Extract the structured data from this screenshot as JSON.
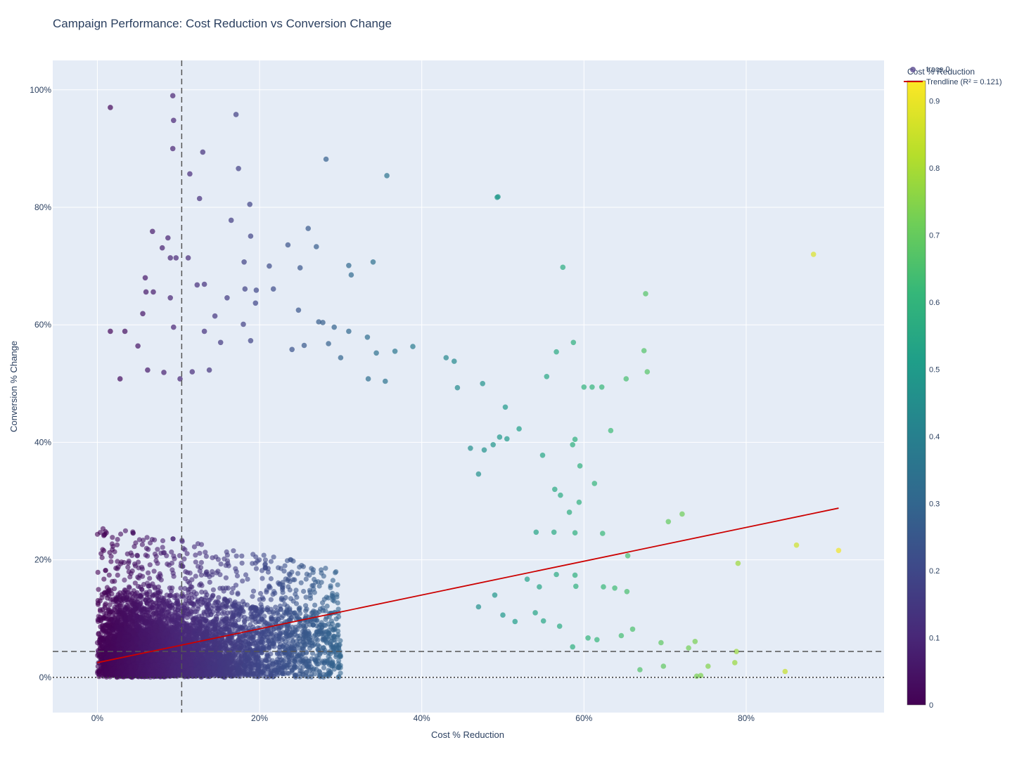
{
  "chart_data": {
    "type": "scatter",
    "title": "Campaign Performance: Cost Reduction vs Conversion Change",
    "xlabel": "Cost % Reduction",
    "ylabel": "Conversion % Change",
    "x_ticks": [
      "0%",
      "20%",
      "40%",
      "60%",
      "80%"
    ],
    "y_ticks": [
      "0%",
      "20%",
      "40%",
      "60%",
      "80%",
      "100%"
    ],
    "xlim": [
      -0.055,
      0.97
    ],
    "ylim": [
      -0.06,
      1.05
    ],
    "grid": true,
    "plot_background": "#e5ecf6",
    "colorscale": "viridis",
    "colorbar": {
      "title": "Cost % Reduction",
      "range": [
        0,
        0.93
      ],
      "ticks": [
        "0",
        "0.1",
        "0.2",
        "0.3",
        "0.4",
        "0.5",
        "0.6",
        "0.7",
        "0.8",
        "0.9"
      ]
    },
    "legend": {
      "placement": "top-right",
      "entries": [
        "trace 0",
        "Trendline (R² = 0.121)"
      ]
    },
    "series": [
      {
        "name": "trace 0",
        "kind": "markers",
        "points": [
          [
            0.016,
            0.97
          ],
          [
            0.093,
            0.99
          ],
          [
            0.094,
            0.948
          ],
          [
            0.171,
            0.958
          ],
          [
            0.093,
            0.9
          ],
          [
            0.13,
            0.894
          ],
          [
            0.282,
            0.882
          ],
          [
            0.174,
            0.866
          ],
          [
            0.114,
            0.857
          ],
          [
            0.357,
            0.854
          ],
          [
            0.126,
            0.815
          ],
          [
            0.188,
            0.805
          ],
          [
            0.493,
            0.817
          ],
          [
            0.883,
            0.72
          ],
          [
            0.165,
            0.778
          ],
          [
            0.068,
            0.759
          ],
          [
            0.087,
            0.748
          ],
          [
            0.08,
            0.731
          ],
          [
            0.189,
            0.751
          ],
          [
            0.235,
            0.736
          ],
          [
            0.27,
            0.733
          ],
          [
            0.09,
            0.714
          ],
          [
            0.097,
            0.714
          ],
          [
            0.112,
            0.714
          ],
          [
            0.181,
            0.707
          ],
          [
            0.212,
            0.7
          ],
          [
            0.25,
            0.697
          ],
          [
            0.31,
            0.701
          ],
          [
            0.313,
            0.685
          ],
          [
            0.34,
            0.707
          ],
          [
            0.574,
            0.698
          ],
          [
            0.676,
            0.653
          ],
          [
            0.059,
            0.68
          ],
          [
            0.06,
            0.656
          ],
          [
            0.069,
            0.656
          ],
          [
            0.09,
            0.646
          ],
          [
            0.123,
            0.668
          ],
          [
            0.132,
            0.669
          ],
          [
            0.16,
            0.646
          ],
          [
            0.182,
            0.661
          ],
          [
            0.196,
            0.659
          ],
          [
            0.217,
            0.661
          ],
          [
            0.26,
            0.764
          ],
          [
            0.248,
            0.625
          ],
          [
            0.195,
            0.637
          ],
          [
            0.145,
            0.615
          ],
          [
            0.016,
            0.589
          ],
          [
            0.034,
            0.589
          ],
          [
            0.056,
            0.619
          ],
          [
            0.094,
            0.596
          ],
          [
            0.132,
            0.589
          ],
          [
            0.152,
            0.57
          ],
          [
            0.18,
            0.601
          ],
          [
            0.189,
            0.573
          ],
          [
            0.273,
            0.605
          ],
          [
            0.278,
            0.604
          ],
          [
            0.292,
            0.596
          ],
          [
            0.31,
            0.589
          ],
          [
            0.333,
            0.579
          ],
          [
            0.344,
            0.552
          ],
          [
            0.367,
            0.555
          ],
          [
            0.389,
            0.563
          ],
          [
            0.566,
            0.554
          ],
          [
            0.587,
            0.57
          ],
          [
            0.674,
            0.556
          ],
          [
            0.678,
            0.52
          ],
          [
            0.05,
            0.564
          ],
          [
            0.062,
            0.523
          ],
          [
            0.028,
            0.508
          ],
          [
            0.082,
            0.519
          ],
          [
            0.102,
            0.508
          ],
          [
            0.117,
            0.52
          ],
          [
            0.138,
            0.523
          ],
          [
            0.24,
            0.558
          ],
          [
            0.255,
            0.565
          ],
          [
            0.285,
            0.568
          ],
          [
            0.3,
            0.544
          ],
          [
            0.334,
            0.508
          ],
          [
            0.355,
            0.504
          ],
          [
            0.43,
            0.544
          ],
          [
            0.44,
            0.538
          ],
          [
            0.475,
            0.5
          ],
          [
            0.554,
            0.512
          ],
          [
            0.6,
            0.494
          ],
          [
            0.61,
            0.494
          ],
          [
            0.622,
            0.494
          ],
          [
            0.652,
            0.508
          ],
          [
            0.494,
            0.818
          ],
          [
            0.444,
            0.493
          ],
          [
            0.503,
            0.46
          ],
          [
            0.505,
            0.406
          ],
          [
            0.52,
            0.423
          ],
          [
            0.633,
            0.42
          ],
          [
            0.589,
            0.405
          ],
          [
            0.595,
            0.36
          ],
          [
            0.613,
            0.33
          ],
          [
            0.564,
            0.32
          ],
          [
            0.571,
            0.31
          ],
          [
            0.549,
            0.378
          ],
          [
            0.586,
            0.396
          ],
          [
            0.488,
            0.396
          ],
          [
            0.496,
            0.409
          ],
          [
            0.477,
            0.387
          ],
          [
            0.46,
            0.39
          ],
          [
            0.47,
            0.346
          ],
          [
            0.704,
            0.265
          ],
          [
            0.721,
            0.278
          ],
          [
            0.79,
            0.194
          ],
          [
            0.654,
            0.207
          ],
          [
            0.862,
            0.225
          ],
          [
            0.914,
            0.216
          ],
          [
            0.848,
            0.01
          ],
          [
            0.786,
            0.025
          ],
          [
            0.788,
            0.044
          ],
          [
            0.739,
            0.002
          ],
          [
            0.744,
            0.003
          ],
          [
            0.753,
            0.019
          ],
          [
            0.737,
            0.061
          ],
          [
            0.729,
            0.05
          ],
          [
            0.695,
            0.059
          ],
          [
            0.698,
            0.019
          ],
          [
            0.669,
            0.013
          ],
          [
            0.66,
            0.082
          ],
          [
            0.646,
            0.071
          ],
          [
            0.653,
            0.146
          ],
          [
            0.638,
            0.152
          ],
          [
            0.624,
            0.154
          ],
          [
            0.616,
            0.064
          ],
          [
            0.605,
            0.067
          ],
          [
            0.586,
            0.052
          ],
          [
            0.59,
            0.155
          ],
          [
            0.589,
            0.174
          ],
          [
            0.566,
            0.175
          ],
          [
            0.545,
            0.154
          ],
          [
            0.53,
            0.167
          ],
          [
            0.541,
            0.247
          ],
          [
            0.563,
            0.247
          ],
          [
            0.589,
            0.246
          ],
          [
            0.623,
            0.245
          ],
          [
            0.594,
            0.298
          ],
          [
            0.582,
            0.281
          ],
          [
            0.57,
            0.087
          ],
          [
            0.55,
            0.096
          ],
          [
            0.515,
            0.095
          ],
          [
            0.5,
            0.106
          ],
          [
            0.54,
            0.11
          ],
          [
            0.47,
            0.12
          ],
          [
            0.49,
            0.14
          ]
        ]
      },
      {
        "name": "Trendline (R² = 0.121)",
        "kind": "line",
        "color": "#cc0000",
        "points": [
          [
            0.0,
            0.025
          ],
          [
            0.914,
            0.288
          ]
        ]
      }
    ],
    "density_cloud": {
      "x_range": [
        0.0,
        0.62
      ],
      "peak_x": 0.15,
      "peak_y": 0.08,
      "description_of_bulk": "dense mass of points concentrated near low cost reduction and low conversion change"
    },
    "reference_lines": [
      {
        "orientation": "vertical",
        "value": 0.104,
        "style": "dashed",
        "color": "#555555"
      },
      {
        "orientation": "horizontal",
        "value": 0.044,
        "style": "dashed",
        "color": "#555555"
      },
      {
        "orientation": "horizontal",
        "value": 0.0,
        "style": "dotted",
        "color": "#333333"
      }
    ]
  }
}
